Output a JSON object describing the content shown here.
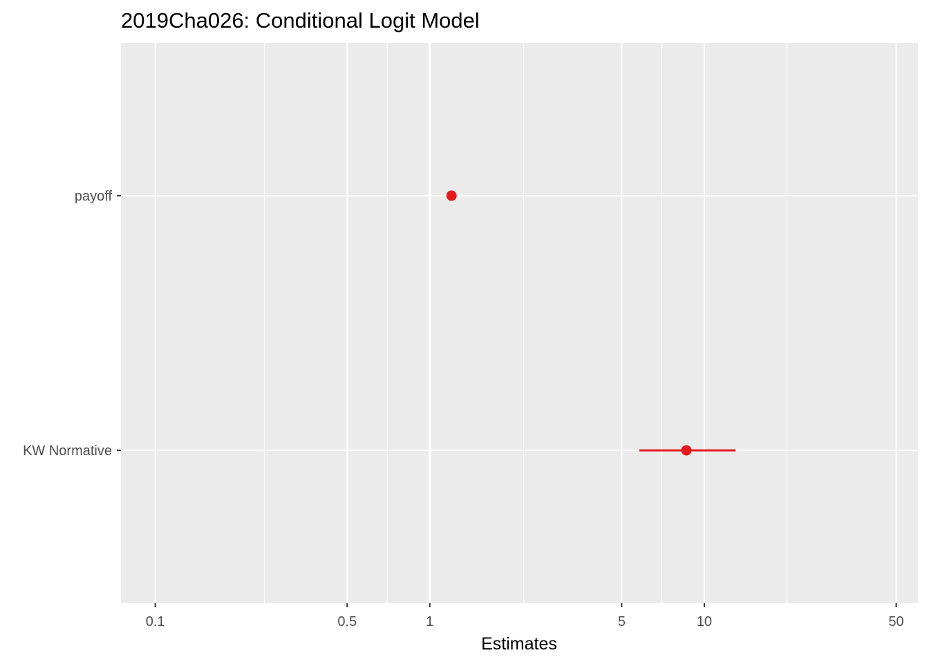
{
  "chart_data": {
    "type": "scatter",
    "title": "2019Cha026: Conditional Logit Model",
    "xlabel": "Estimates",
    "ylabel": "",
    "x_scale": "log10",
    "xlim": [
      0.075,
      60
    ],
    "x_ticks": [
      0.1,
      0.5,
      1,
      5,
      10,
      50
    ],
    "x_tick_labels": [
      "0.1",
      "0.5",
      "1",
      "5",
      "10",
      "50"
    ],
    "x_minor_gridlines": [
      0.25,
      0.7,
      2.2,
      7,
      20
    ],
    "categories": [
      "payoff",
      "KW Normative"
    ],
    "points": [
      {
        "term": "payoff",
        "estimate": 1.2,
        "conf_low": 1.2,
        "conf_high": 1.2
      },
      {
        "term": "KW Normative",
        "estimate": 8.6,
        "conf_low": 5.8,
        "conf_high": 13.0
      }
    ],
    "grid": true,
    "legend": "none",
    "point_color": "#e41a1c",
    "panel_background": "#ebebeb",
    "gridline_color": "#ffffff",
    "reference_line": 1
  }
}
